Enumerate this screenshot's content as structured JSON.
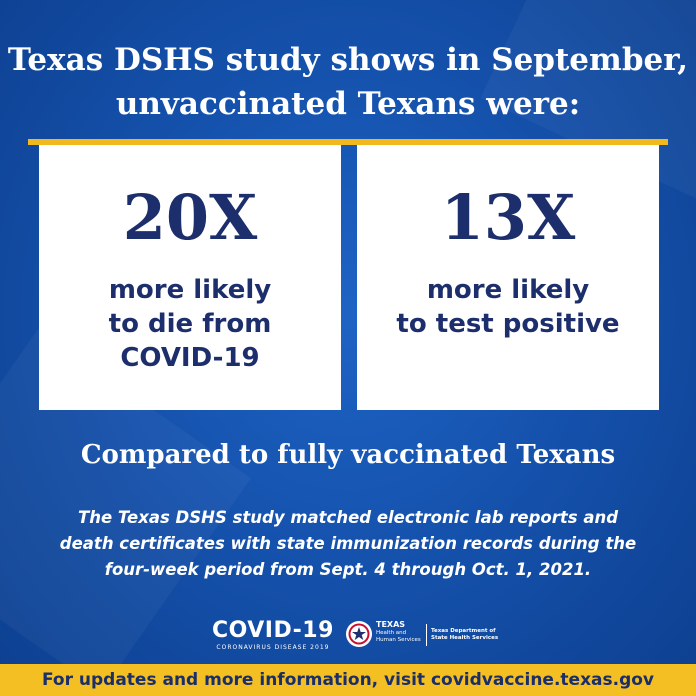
{
  "headline": {
    "line1": "Texas DSHS study shows in September,",
    "line2": "unvaccinated Texans were:"
  },
  "stats": [
    {
      "value": "20X",
      "desc": [
        "more likely",
        "to die from",
        "COVID-19"
      ]
    },
    {
      "value": "13X",
      "desc": [
        "more likely",
        "to test positive"
      ]
    }
  ],
  "subheading": "Compared to fully vaccinated Texans",
  "note": {
    "line1": "The Texas DSHS study matched electronic lab reports and",
    "line2": "death certificates with state immunization records during the",
    "line3": "four-week period from Sept. 4 through Oct. 1, 2021."
  },
  "logos": {
    "covid_word": "COVID-19",
    "covid_sub": "CORONAVIRUS DISEASE 2019",
    "hhs_name_top": "TEXAS",
    "hhs_name_rest": "Health and Human Services",
    "hhs_dept": "Texas Department of State Health Services"
  },
  "footer": "For updates and more information, visit covidvaccine.texas.gov",
  "colors": {
    "background": "#1552ad",
    "accent": "#f2b91f",
    "card_text": "#1c2e6b",
    "footer_bg": "#f4bf22"
  }
}
